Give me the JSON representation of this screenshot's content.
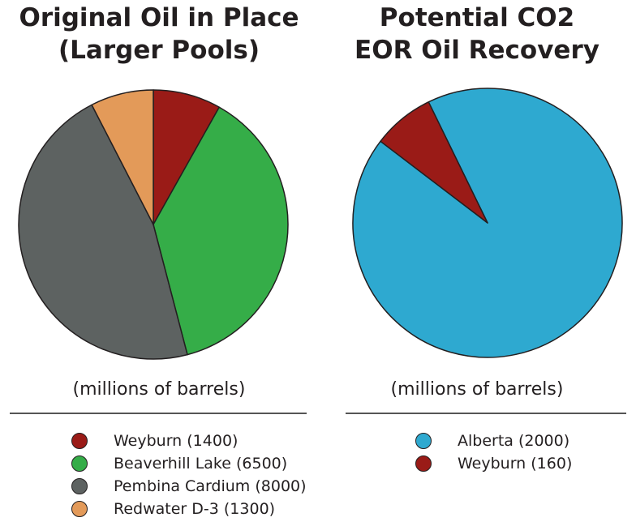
{
  "chart_data": [
    {
      "type": "pie",
      "title": [
        "Original Oil in Place",
        "(Larger Pools)"
      ],
      "units": "(millions of barrels)",
      "slices": [
        {
          "label": "Weyburn",
          "value": 1400,
          "color": "#9a1b17",
          "legend": "Weyburn (1400)"
        },
        {
          "label": "Beaverhill Lake",
          "value": 6500,
          "color": "#35ad48",
          "legend": "Beaverhill Lake (6500)"
        },
        {
          "label": "Pembina Cardium",
          "value": 8000,
          "color": "#5d6261",
          "legend": "Pembina Cardium (8000)"
        },
        {
          "label": "Redwater D-3",
          "value": 1300,
          "color": "#e39a59",
          "legend": "Redwater D-3 (1300)"
        }
      ]
    },
    {
      "type": "pie",
      "title": [
        "Potential CO2",
        "EOR Oil Recovery"
      ],
      "units": "(millions of barrels)",
      "slices": [
        {
          "label": "Alberta",
          "value": 2000,
          "color": "#2ea9d0",
          "legend": "Alberta (2000)"
        },
        {
          "label": "Weyburn",
          "value": 160,
          "color": "#9a1b17",
          "legend": "Weyburn (160)"
        }
      ]
    }
  ]
}
